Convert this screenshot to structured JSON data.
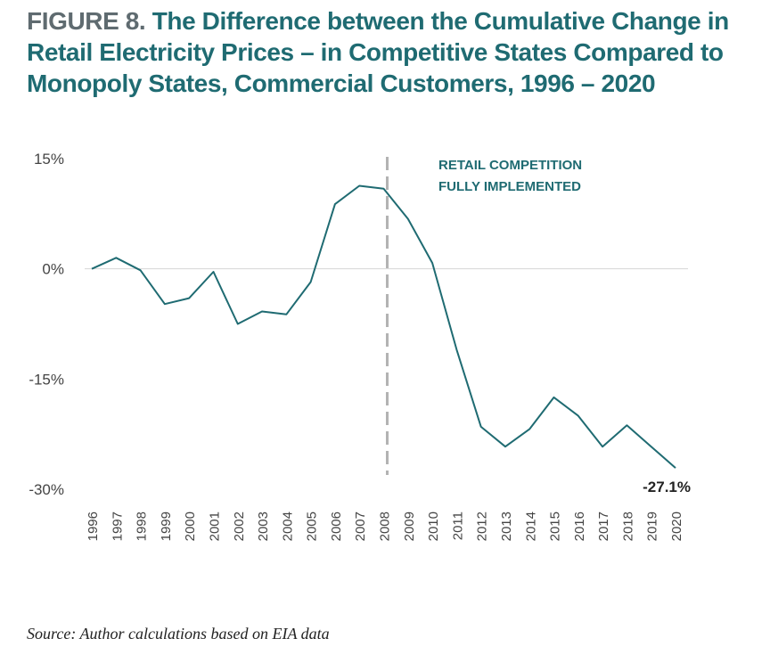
{
  "figure": {
    "label": "FIGURE 8.",
    "title": "The Difference between the Cumulative Change in Retail Electricity Prices – in Competitive States Compared to Monopoly States, Commercial Customers, 1996 – 2020"
  },
  "source": "Source: Author calculations based on EIA data",
  "colors": {
    "line": "#1f6b72",
    "title": "#1f6b72",
    "figure_label": "#5f6b70",
    "marker": "#b3b3b3",
    "zero_line": "#d6d6d6"
  },
  "chart_data": {
    "type": "line",
    "x": [
      "1996",
      "1997",
      "1998",
      "1999",
      "2000",
      "2001",
      "2002",
      "2003",
      "2004",
      "2005",
      "2006",
      "2007",
      "2008",
      "2009",
      "2010",
      "2011",
      "2012",
      "2013",
      "2014",
      "2015",
      "2016",
      "2017",
      "2018",
      "2019",
      "2020"
    ],
    "series": [
      {
        "values": [
          0.0,
          1.5,
          -0.2,
          -4.8,
          -4.0,
          -0.4,
          -7.5,
          -5.8,
          -6.2,
          -1.8,
          8.8,
          11.3,
          10.9,
          6.8,
          0.8,
          -11.0,
          -21.5,
          -24.2,
          -21.8,
          -17.5,
          -20.0,
          -24.2,
          -21.3,
          -24.2,
          -27.1
        ]
      }
    ],
    "yticks": [
      15,
      0,
      -15,
      -30
    ],
    "ytick_labels": [
      "15%",
      "0%",
      "-15%",
      "-30%"
    ],
    "ylim": [
      -30,
      15
    ],
    "grid": false,
    "annotations": {
      "vertical_marker_at": "2008",
      "marker_label_line1": "RETAIL COMPETITION",
      "marker_label_line2": "FULLY IMPLEMENTED",
      "end_label": "-27.1%"
    }
  }
}
